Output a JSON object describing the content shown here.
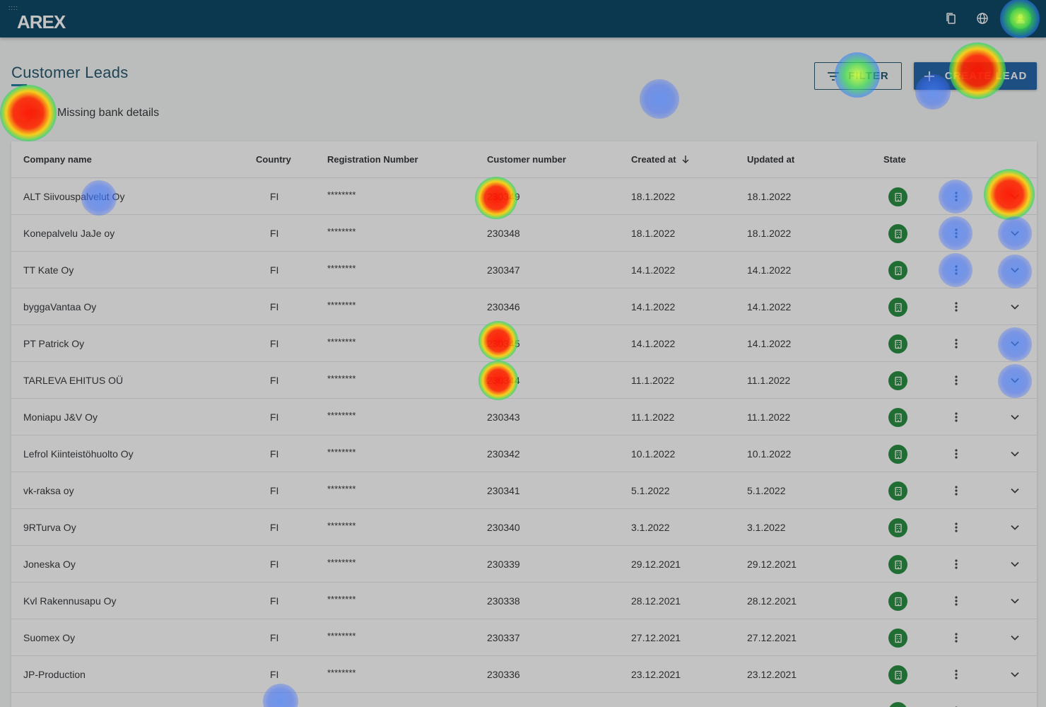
{
  "app": {
    "logo_text": "AREX",
    "logo_dots": "::::"
  },
  "topbar": {
    "icons": [
      "copy-icon",
      "globe-icon",
      "user-avatar-icon"
    ]
  },
  "page": {
    "title": "Customer Leads",
    "filter_label": "FILTER",
    "create_label": "CREATE LEAD",
    "toggle_label": "Missing bank details",
    "toggle_on": false
  },
  "table": {
    "headers": {
      "company": "Company name",
      "country": "Country",
      "registration": "Registration Number",
      "customer": "Customer number",
      "created": "Created at",
      "updated": "Updated at",
      "state": "State"
    },
    "sort_indicator": "arrow-down-icon",
    "rows": [
      {
        "company": "ALT Siivouspalvelut Oy",
        "country": "FI",
        "registration": "********",
        "customer": "230349",
        "created": "18.1.2022",
        "updated": "18.1.2022"
      },
      {
        "company": "Konepalvelu JaJe oy",
        "country": "FI",
        "registration": "********",
        "customer": "230348",
        "created": "18.1.2022",
        "updated": "18.1.2022"
      },
      {
        "company": "TT Kate Oy",
        "country": "FI",
        "registration": "********",
        "customer": "230347",
        "created": "14.1.2022",
        "updated": "14.1.2022"
      },
      {
        "company": "byggaVantaa Oy",
        "country": "FI",
        "registration": "********",
        "customer": "230346",
        "created": "14.1.2022",
        "updated": "14.1.2022"
      },
      {
        "company": "PT Patrick Oy",
        "country": "FI",
        "registration": "********",
        "customer": "230345",
        "created": "14.1.2022",
        "updated": "14.1.2022"
      },
      {
        "company": "TARLEVA EHITUS OÜ",
        "country": "FI",
        "registration": "********",
        "customer": "230344",
        "created": "11.1.2022",
        "updated": "11.1.2022"
      },
      {
        "company": "Moniapu J&V Oy",
        "country": "FI",
        "registration": "********",
        "customer": "230343",
        "created": "11.1.2022",
        "updated": "11.1.2022"
      },
      {
        "company": "Lefrol Kiinteistöhuolto Oy",
        "country": "FI",
        "registration": "********",
        "customer": "230342",
        "created": "10.1.2022",
        "updated": "10.1.2022"
      },
      {
        "company": "vk-raksa oy",
        "country": "FI",
        "registration": "********",
        "customer": "230341",
        "created": "5.1.2022",
        "updated": "5.1.2022"
      },
      {
        "company": "9RTurva Oy",
        "country": "FI",
        "registration": "********",
        "customer": "230340",
        "created": "3.1.2022",
        "updated": "3.1.2022"
      },
      {
        "company": "Joneska Oy",
        "country": "FI",
        "registration": "********",
        "customer": "230339",
        "created": "29.12.2021",
        "updated": "29.12.2021"
      },
      {
        "company": "Kvl Rakennusapu Oy",
        "country": "FI",
        "registration": "********",
        "customer": "230338",
        "created": "28.12.2021",
        "updated": "28.12.2021"
      },
      {
        "company": "Suomex Oy",
        "country": "FI",
        "registration": "********",
        "customer": "230337",
        "created": "27.12.2021",
        "updated": "27.12.2021"
      },
      {
        "company": "JP-Production",
        "country": "FI",
        "registration": "********",
        "customer": "230336",
        "created": "23.12.2021",
        "updated": "23.12.2021"
      },
      {
        "company": "",
        "country": "",
        "registration": "",
        "customer": "",
        "created": "",
        "updated": ""
      }
    ]
  },
  "colors": {
    "topbar": "#003f5e",
    "accent": "#1b5fa6",
    "state_badge": "#1f8a3a",
    "avatar": "#33b24a"
  }
}
